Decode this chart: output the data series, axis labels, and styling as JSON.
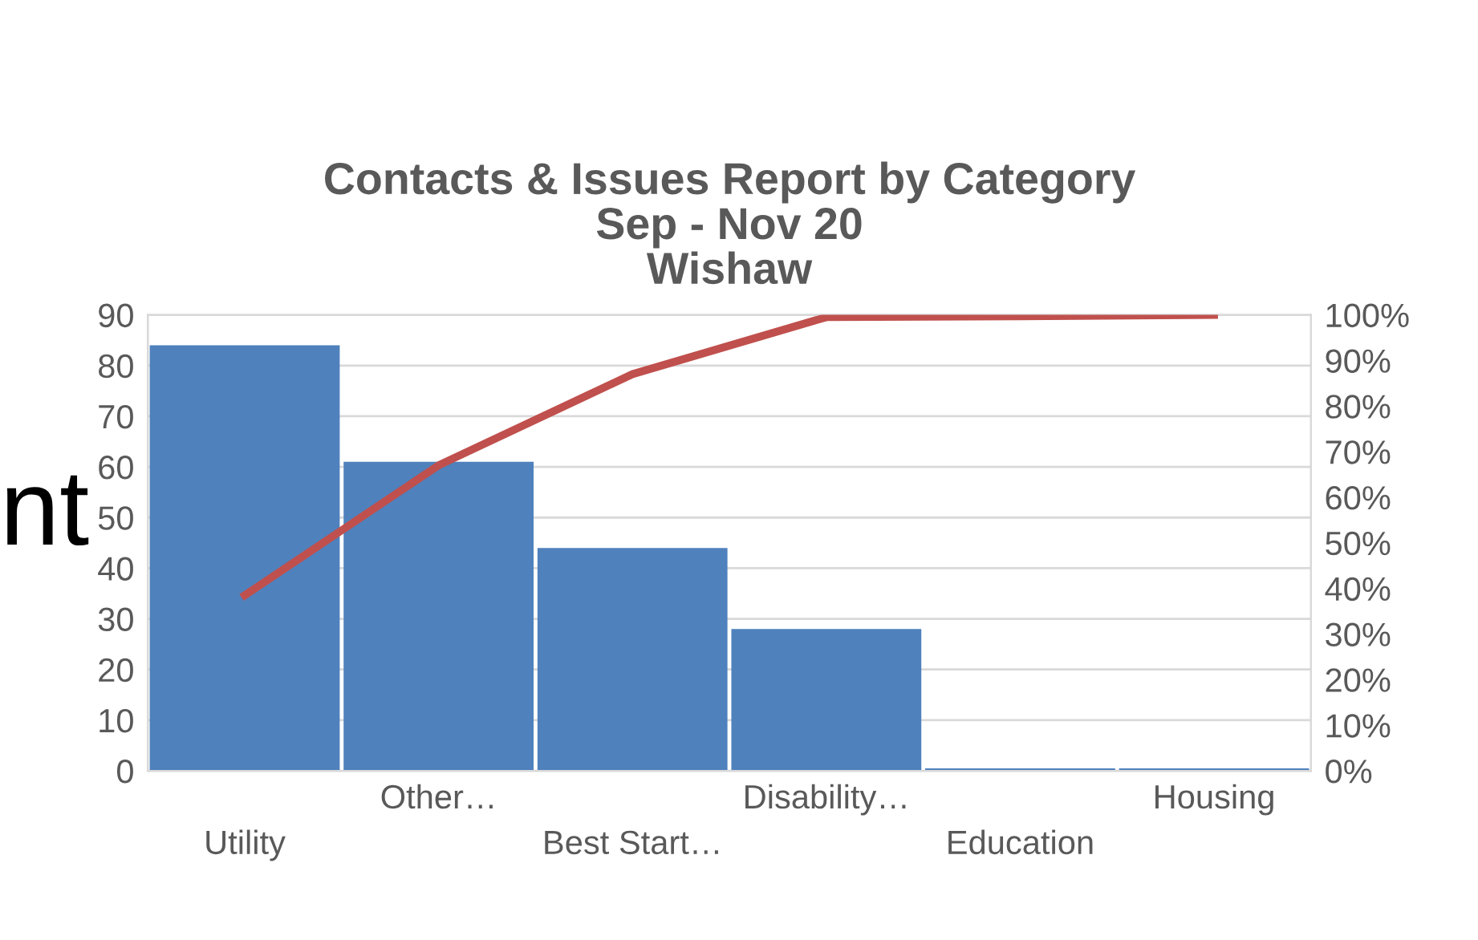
{
  "chart_data": {
    "type": "bar",
    "title": "Contacts & Issues Report by Category\nSep - Nov 20\nWishaw",
    "categories": [
      "Utility",
      "Other…",
      "Best Start…",
      "Disability…",
      "Education",
      "Housing"
    ],
    "series": [
      {
        "color": "#4f81bd",
        "values": [
          84,
          61,
          44,
          28,
          0.5,
          0.5
        ]
      },
      {
        "type": "line",
        "axis": "y2",
        "color": "#c0504d",
        "values": [
          38.5,
          67,
          87,
          99.5,
          99.7,
          100
        ]
      }
    ],
    "ylim": [
      0,
      90
    ],
    "yticks": [
      0,
      10,
      20,
      30,
      40,
      50,
      60,
      70,
      80,
      90
    ],
    "y2lim": [
      0,
      100
    ],
    "y2ticks": [
      {
        "value": 0,
        "label": "0%"
      },
      {
        "value": 10,
        "label": "10%"
      },
      {
        "value": 20,
        "label": "20%"
      },
      {
        "value": 30,
        "label": "30%"
      },
      {
        "value": 40,
        "label": "40%"
      },
      {
        "value": 50,
        "label": "50%"
      },
      {
        "value": 60,
        "label": "60%"
      },
      {
        "value": 70,
        "label": "70%"
      },
      {
        "value": 80,
        "label": "80%"
      },
      {
        "value": 90,
        "label": "90%"
      },
      {
        "value": 100,
        "label": "100%"
      }
    ],
    "grid": "y",
    "legend": false,
    "marker": "none",
    "line_style": "solid",
    "annotations": [
      "nt"
    ]
  }
}
